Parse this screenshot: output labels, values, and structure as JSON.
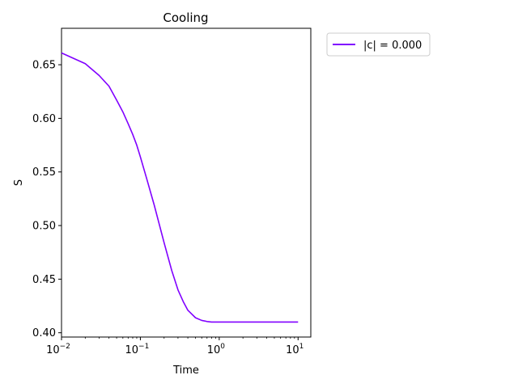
{
  "chart_data": {
    "type": "line",
    "title": "Cooling",
    "xlabel": "Time",
    "ylabel": "S",
    "xscale": "log",
    "xlim": [
      0.01,
      14.5
    ],
    "ylim": [
      0.396,
      0.684
    ],
    "grid": false,
    "legend_placement": "outside-top-right",
    "xticks": [
      {
        "value": 0.01,
        "base": "10",
        "exp": "−2"
      },
      {
        "value": 0.1,
        "base": "10",
        "exp": "−1"
      },
      {
        "value": 1,
        "base": "10",
        "exp": "0"
      },
      {
        "value": 10,
        "base": "10",
        "exp": "1"
      }
    ],
    "yticks": [
      {
        "value": 0.4,
        "label": "0.40"
      },
      {
        "value": 0.45,
        "label": "0.45"
      },
      {
        "value": 0.5,
        "label": "0.50"
      },
      {
        "value": 0.55,
        "label": "0.55"
      },
      {
        "value": 0.6,
        "label": "0.60"
      },
      {
        "value": 0.65,
        "label": "0.65"
      }
    ],
    "series": [
      {
        "name": "|c| = 0.000",
        "color": "#8000ff",
        "x": [
          0.01,
          0.02,
          0.03,
          0.04,
          0.05,
          0.06,
          0.07,
          0.08,
          0.09,
          0.1,
          0.12,
          0.15,
          0.2,
          0.25,
          0.3,
          0.35,
          0.4,
          0.5,
          0.6,
          0.7,
          0.8,
          0.9,
          1.0,
          1.5,
          2,
          3,
          5,
          10
        ],
        "y": [
          0.661,
          0.651,
          0.64,
          0.63,
          0.617,
          0.606,
          0.595,
          0.585,
          0.575,
          0.564,
          0.544,
          0.519,
          0.484,
          0.458,
          0.44,
          0.429,
          0.421,
          0.414,
          0.4115,
          0.4105,
          0.41,
          0.41,
          0.41,
          0.41,
          0.41,
          0.41,
          0.41,
          0.41
        ]
      }
    ]
  }
}
